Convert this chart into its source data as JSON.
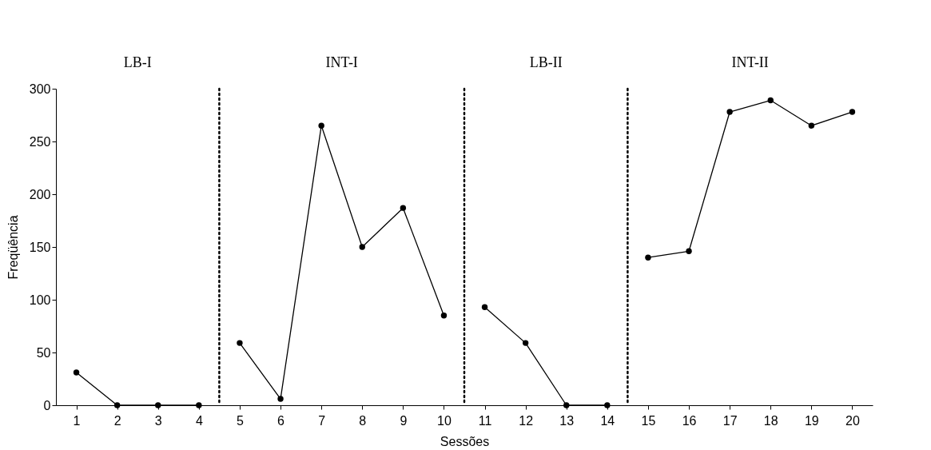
{
  "chart_data": {
    "type": "line",
    "xlabel": "Sessões",
    "ylabel": "Freqüência",
    "xlim": [
      0.5,
      20.5
    ],
    "xticks": [
      1,
      2,
      3,
      4,
      5,
      6,
      7,
      8,
      9,
      10,
      11,
      12,
      13,
      14,
      15,
      16,
      17,
      18,
      19,
      20
    ],
    "ylim": [
      0,
      300
    ],
    "yticks": [
      0,
      50,
      100,
      150,
      200,
      250,
      300
    ],
    "grid": false,
    "legend": false,
    "marker": "circle",
    "line_style": "solid",
    "series": [
      {
        "color": "#000000",
        "x": [
          1,
          2,
          3,
          4
        ],
        "values": [
          31,
          0,
          0,
          0
        ]
      },
      {
        "color": "#000000",
        "x": [
          5,
          6,
          7,
          8,
          9,
          10
        ],
        "values": [
          59,
          6,
          265,
          150,
          187,
          85
        ]
      },
      {
        "color": "#000000",
        "x": [
          11,
          12,
          13,
          14
        ],
        "values": [
          93,
          59,
          0,
          0
        ]
      },
      {
        "color": "#000000",
        "x": [
          15,
          16,
          17,
          18,
          19,
          20
        ],
        "values": [
          140,
          146,
          278,
          289,
          265,
          278
        ]
      }
    ],
    "ref_lines": [
      {
        "axis": "x",
        "value": 4.5,
        "line_style": "dotted"
      },
      {
        "axis": "x",
        "value": 10.5,
        "line_style": "dotted"
      },
      {
        "axis": "x",
        "value": 14.5,
        "line_style": "dotted"
      }
    ],
    "annotations": [
      "LB-I",
      "INT-I",
      "LB-II",
      "INT-II"
    ]
  }
}
